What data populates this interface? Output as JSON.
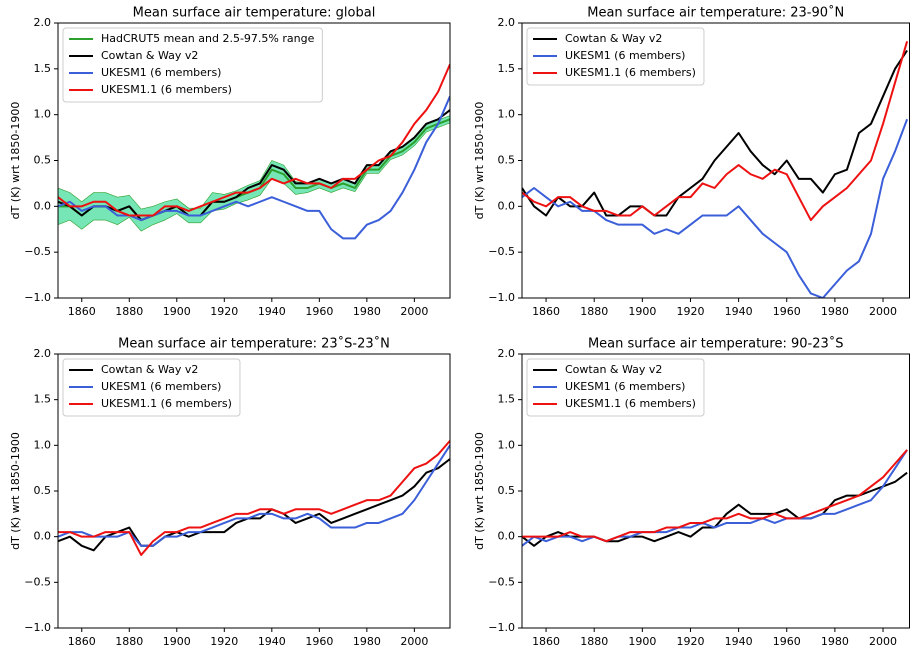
{
  "chart_data": [
    {
      "type": "line",
      "title": "Mean surface air temperature: global",
      "ylabel": "dT (K) wrt 1850-1900",
      "x": [
        1850,
        1855,
        1860,
        1865,
        1870,
        1875,
        1880,
        1885,
        1890,
        1895,
        1900,
        1905,
        1910,
        1915,
        1920,
        1925,
        1930,
        1935,
        1940,
        1945,
        1950,
        1955,
        1960,
        1965,
        1970,
        1975,
        1980,
        1985,
        1990,
        1995,
        2000,
        2005,
        2010,
        2015
      ],
      "xlim": [
        1850,
        2015
      ],
      "ylim": [
        -1,
        2
      ],
      "xticks": [
        1860,
        1880,
        1900,
        1920,
        1940,
        1960,
        1980,
        2000
      ],
      "yticks": [
        {
          "value": -1,
          "label": "−1.0"
        },
        {
          "value": -0.5,
          "label": "−0.5"
        },
        {
          "value": 0,
          "label": "0.0"
        },
        {
          "value": 0.5,
          "label": "0.5"
        },
        {
          "value": 1,
          "label": "1.0"
        },
        {
          "value": 1.5,
          "label": "1.5"
        },
        {
          "value": 2,
          "label": "2.0"
        }
      ],
      "legend": "upper left",
      "series": [
        {
          "name": "HadCRUT5 mean and 2.5-97.5% range",
          "color": "#2ca02c",
          "band_color": "#3ddc97",
          "values": [
            0.0,
            0.0,
            -0.1,
            0.0,
            0.0,
            -0.05,
            0.0,
            -0.15,
            -0.1,
            -0.05,
            0.0,
            -0.1,
            -0.1,
            0.05,
            0.05,
            0.1,
            0.15,
            0.2,
            0.4,
            0.35,
            0.2,
            0.2,
            0.25,
            0.2,
            0.25,
            0.2,
            0.4,
            0.4,
            0.55,
            0.6,
            0.7,
            0.85,
            0.9,
            0.95
          ],
          "lower": [
            -0.2,
            -0.15,
            -0.25,
            -0.15,
            -0.15,
            -0.2,
            -0.12,
            -0.27,
            -0.2,
            -0.15,
            -0.08,
            -0.18,
            -0.18,
            -0.05,
            -0.03,
            0.03,
            0.07,
            0.12,
            0.3,
            0.25,
            0.13,
            0.15,
            0.2,
            0.15,
            0.2,
            0.16,
            0.36,
            0.36,
            0.51,
            0.56,
            0.66,
            0.81,
            0.86,
            0.91
          ],
          "upper": [
            0.2,
            0.15,
            0.05,
            0.15,
            0.15,
            0.1,
            0.12,
            -0.03,
            0.0,
            0.05,
            0.08,
            -0.02,
            -0.02,
            0.15,
            0.13,
            0.17,
            0.23,
            0.28,
            0.5,
            0.45,
            0.27,
            0.25,
            0.3,
            0.25,
            0.3,
            0.24,
            0.44,
            0.44,
            0.59,
            0.64,
            0.74,
            0.89,
            0.94,
            0.99
          ]
        },
        {
          "name": "Cowtan & Way v2",
          "color": "#000000",
          "values": [
            0.05,
            0.0,
            -0.1,
            0.0,
            0.0,
            -0.05,
            0.0,
            -0.15,
            -0.1,
            -0.05,
            0.0,
            -0.1,
            -0.1,
            0.05,
            0.05,
            0.1,
            0.2,
            0.25,
            0.45,
            0.4,
            0.25,
            0.25,
            0.3,
            0.25,
            0.3,
            0.25,
            0.45,
            0.45,
            0.6,
            0.65,
            0.75,
            0.9,
            0.95,
            1.05
          ]
        },
        {
          "name": "UKESM1 (6 members)",
          "color": "#3b5fd9",
          "values": [
            0.0,
            0.05,
            -0.05,
            0.0,
            0.0,
            -0.1,
            -0.1,
            -0.15,
            -0.1,
            -0.05,
            -0.05,
            -0.1,
            -0.1,
            -0.05,
            0.0,
            0.05,
            0.0,
            0.05,
            0.1,
            0.05,
            0.0,
            -0.05,
            -0.05,
            -0.25,
            -0.35,
            -0.35,
            -0.2,
            -0.15,
            -0.05,
            0.15,
            0.4,
            0.7,
            0.9,
            1.2
          ]
        },
        {
          "name": "UKESM1.1 (6 members)",
          "color": "#ee1111",
          "values": [
            0.1,
            0.0,
            0.0,
            0.05,
            0.05,
            -0.05,
            -0.1,
            -0.1,
            -0.1,
            0.0,
            0.0,
            -0.05,
            0.0,
            0.05,
            0.1,
            0.15,
            0.15,
            0.2,
            0.3,
            0.25,
            0.3,
            0.25,
            0.25,
            0.2,
            0.3,
            0.3,
            0.4,
            0.5,
            0.55,
            0.7,
            0.9,
            1.05,
            1.25,
            1.55
          ]
        }
      ]
    },
    {
      "type": "line",
      "title": "Mean surface air temperature: 23-90˚N",
      "ylabel": "dT (K) wrt 1850-1900",
      "x": [
        1850,
        1855,
        1860,
        1865,
        1870,
        1875,
        1880,
        1885,
        1890,
        1895,
        1900,
        1905,
        1910,
        1915,
        1920,
        1925,
        1930,
        1935,
        1940,
        1945,
        1950,
        1955,
        1960,
        1965,
        1970,
        1975,
        1980,
        1985,
        1990,
        1995,
        2000,
        2005,
        2010
      ],
      "xlim": [
        1850,
        2011
      ],
      "ylim": [
        -1,
        2
      ],
      "xticks": [
        1860,
        1880,
        1900,
        1920,
        1940,
        1960,
        1980,
        2000
      ],
      "yticks": [
        {
          "value": -1,
          "label": "−1.0"
        },
        {
          "value": -0.5,
          "label": "−0.5"
        },
        {
          "value": 0,
          "label": "0.0"
        },
        {
          "value": 0.5,
          "label": "0.5"
        },
        {
          "value": 1,
          "label": "1.0"
        },
        {
          "value": 1.5,
          "label": "1.5"
        },
        {
          "value": 2,
          "label": "2.0"
        }
      ],
      "legend": "upper left",
      "series": [
        {
          "name": "Cowtan & Way v2",
          "color": "#000000",
          "values": [
            0.2,
            0.0,
            -0.1,
            0.1,
            0.0,
            0.0,
            0.15,
            -0.1,
            -0.1,
            0.0,
            0.0,
            -0.1,
            -0.1,
            0.1,
            0.2,
            0.3,
            0.5,
            0.65,
            0.8,
            0.6,
            0.45,
            0.35,
            0.5,
            0.3,
            0.3,
            0.15,
            0.35,
            0.4,
            0.8,
            0.9,
            1.2,
            1.5,
            1.7
          ]
        },
        {
          "name": "UKESM1 (6 members)",
          "color": "#3b5fd9",
          "values": [
            0.1,
            0.2,
            0.1,
            0.0,
            0.05,
            -0.05,
            -0.05,
            -0.15,
            -0.2,
            -0.2,
            -0.2,
            -0.3,
            -0.25,
            -0.3,
            -0.2,
            -0.1,
            -0.1,
            -0.1,
            0.0,
            -0.15,
            -0.3,
            -0.4,
            -0.5,
            -0.75,
            -0.95,
            -1.0,
            -0.85,
            -0.7,
            -0.6,
            -0.3,
            0.3,
            0.6,
            0.95
          ]
        },
        {
          "name": "UKESM1.1 (6 members)",
          "color": "#ee1111",
          "values": [
            0.15,
            0.05,
            0.0,
            0.1,
            0.1,
            0.0,
            -0.05,
            -0.05,
            -0.1,
            -0.1,
            0.0,
            -0.1,
            0.0,
            0.1,
            0.1,
            0.25,
            0.2,
            0.35,
            0.45,
            0.35,
            0.3,
            0.4,
            0.35,
            0.1,
            -0.15,
            0.0,
            0.1,
            0.2,
            0.35,
            0.5,
            0.9,
            1.35,
            1.8
          ]
        }
      ]
    },
    {
      "type": "line",
      "title": "Mean surface air temperature: 23˚S-23˚N",
      "ylabel": "dT (K) wrt 1850-1900",
      "x": [
        1850,
        1855,
        1860,
        1865,
        1870,
        1875,
        1880,
        1885,
        1890,
        1895,
        1900,
        1905,
        1910,
        1915,
        1920,
        1925,
        1930,
        1935,
        1940,
        1945,
        1950,
        1955,
        1960,
        1965,
        1970,
        1975,
        1980,
        1985,
        1990,
        1995,
        2000,
        2005,
        2010,
        2015
      ],
      "xlim": [
        1850,
        2015
      ],
      "ylim": [
        -1,
        2
      ],
      "xticks": [
        1860,
        1880,
        1900,
        1920,
        1940,
        1960,
        1980,
        2000
      ],
      "yticks": [
        {
          "value": -1,
          "label": "−1.0"
        },
        {
          "value": -0.5,
          "label": "−0.5"
        },
        {
          "value": 0,
          "label": "0.0"
        },
        {
          "value": 0.5,
          "label": "0.5"
        },
        {
          "value": 1,
          "label": "1.0"
        },
        {
          "value": 1.5,
          "label": "1.5"
        },
        {
          "value": 2,
          "label": "2.0"
        }
      ],
      "legend": "upper left",
      "series": [
        {
          "name": "Cowtan & Way v2",
          "color": "#000000",
          "values": [
            -0.05,
            0.0,
            -0.1,
            -0.15,
            0.0,
            0.05,
            0.1,
            -0.1,
            -0.1,
            0.0,
            0.05,
            0.0,
            0.05,
            0.05,
            0.05,
            0.15,
            0.2,
            0.2,
            0.3,
            0.25,
            0.15,
            0.2,
            0.25,
            0.15,
            0.2,
            0.25,
            0.3,
            0.35,
            0.4,
            0.45,
            0.55,
            0.7,
            0.75,
            0.85
          ]
        },
        {
          "name": "UKESM1 (6 members)",
          "color": "#3b5fd9",
          "values": [
            0.0,
            0.05,
            0.05,
            0.0,
            0.0,
            0.0,
            0.05,
            -0.1,
            -0.1,
            0.0,
            0.0,
            0.05,
            0.05,
            0.1,
            0.15,
            0.2,
            0.2,
            0.25,
            0.25,
            0.2,
            0.2,
            0.25,
            0.2,
            0.1,
            0.1,
            0.1,
            0.15,
            0.15,
            0.2,
            0.25,
            0.4,
            0.6,
            0.8,
            1.0
          ]
        },
        {
          "name": "UKESM1.1 (6 members)",
          "color": "#ee1111",
          "values": [
            0.05,
            0.05,
            0.0,
            0.0,
            0.05,
            0.05,
            0.05,
            -0.2,
            -0.05,
            0.05,
            0.05,
            0.1,
            0.1,
            0.15,
            0.2,
            0.25,
            0.25,
            0.3,
            0.3,
            0.25,
            0.3,
            0.3,
            0.3,
            0.25,
            0.3,
            0.35,
            0.4,
            0.4,
            0.45,
            0.6,
            0.75,
            0.8,
            0.9,
            1.05
          ]
        }
      ]
    },
    {
      "type": "line",
      "title": "Mean surface air temperature: 90-23˚S",
      "ylabel": "dT (K) wrt 1850-1900",
      "x": [
        1850,
        1855,
        1860,
        1865,
        1870,
        1875,
        1880,
        1885,
        1890,
        1895,
        1900,
        1905,
        1910,
        1915,
        1920,
        1925,
        1930,
        1935,
        1940,
        1945,
        1950,
        1955,
        1960,
        1965,
        1970,
        1975,
        1980,
        1985,
        1990,
        1995,
        2000,
        2005,
        2010
      ],
      "xlim": [
        1850,
        2011
      ],
      "ylim": [
        -1,
        2
      ],
      "xticks": [
        1860,
        1880,
        1900,
        1920,
        1940,
        1960,
        1980,
        2000
      ],
      "yticks": [
        {
          "value": -1,
          "label": "−1.0"
        },
        {
          "value": -0.5,
          "label": "−0.5"
        },
        {
          "value": 0,
          "label": "0.0"
        },
        {
          "value": 0.5,
          "label": "0.5"
        },
        {
          "value": 1,
          "label": "1.0"
        },
        {
          "value": 1.5,
          "label": "1.5"
        },
        {
          "value": 2,
          "label": "2.0"
        }
      ],
      "legend": "upper left",
      "series": [
        {
          "name": "Cowtan & Way v2",
          "color": "#000000",
          "values": [
            0.0,
            -0.1,
            0.0,
            0.05,
            0.0,
            0.0,
            0.0,
            -0.05,
            -0.05,
            0.0,
            0.0,
            -0.05,
            0.0,
            0.05,
            0.0,
            0.1,
            0.1,
            0.25,
            0.35,
            0.25,
            0.25,
            0.25,
            0.3,
            0.2,
            0.2,
            0.25,
            0.4,
            0.45,
            0.45,
            0.5,
            0.55,
            0.6,
            0.7
          ]
        },
        {
          "name": "UKESM1 (6 members)",
          "color": "#3b5fd9",
          "values": [
            -0.1,
            0.0,
            -0.05,
            0.0,
            0.0,
            -0.05,
            0.0,
            -0.05,
            0.0,
            0.0,
            0.05,
            0.05,
            0.05,
            0.1,
            0.1,
            0.15,
            0.1,
            0.15,
            0.15,
            0.15,
            0.2,
            0.15,
            0.2,
            0.2,
            0.2,
            0.25,
            0.25,
            0.3,
            0.35,
            0.4,
            0.55,
            0.75,
            0.95
          ]
        },
        {
          "name": "UKESM1.1 (6 members)",
          "color": "#ee1111",
          "values": [
            0.0,
            0.0,
            0.0,
            0.0,
            0.05,
            0.0,
            0.0,
            -0.05,
            0.0,
            0.05,
            0.05,
            0.05,
            0.1,
            0.1,
            0.15,
            0.15,
            0.2,
            0.2,
            0.25,
            0.2,
            0.2,
            0.25,
            0.2,
            0.2,
            0.25,
            0.3,
            0.35,
            0.4,
            0.45,
            0.55,
            0.65,
            0.8,
            0.95
          ]
        }
      ]
    }
  ]
}
